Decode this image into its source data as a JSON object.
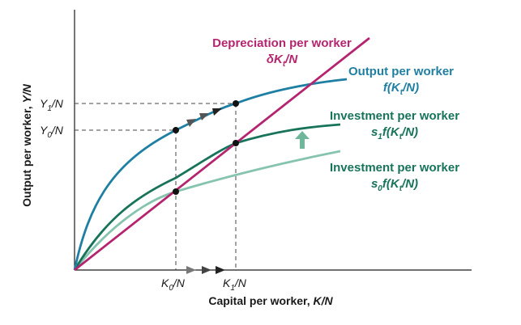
{
  "chart_data": {
    "type": "line",
    "xlabel": "Capital per worker, K/N",
    "ylabel": "Output per worker, Y/N",
    "x_ticks": [
      "K0/N",
      "K1/N"
    ],
    "y_ticks": [
      "Y0/N",
      "Y1/N"
    ],
    "series": [
      {
        "name": "Depreciation per worker",
        "formula": "δKt/N",
        "color": "#b5246f",
        "shape": "linear"
      },
      {
        "name": "Output per worker",
        "formula": "f(Kt/N)",
        "color": "#1f7fa3",
        "shape": "concave"
      },
      {
        "name": "Investment per worker",
        "formula": "s1f(Kt/N)",
        "color": "#17745a",
        "shape": "concave"
      },
      {
        "name": "Investment per worker",
        "formula": "s0f(Kt/N)",
        "color": "#86c4ae",
        "shape": "concave"
      }
    ]
  },
  "labels": {
    "xlabel_text": "Capital per worker, ",
    "xlabel_var": "K/N",
    "ylabel_text": "Output per worker, ",
    "ylabel_var": "Y/N",
    "dep_title": "Depreciation per worker",
    "out_title": "Output per worker",
    "inv1_title": "Investment per worker",
    "inv0_title": "Investment per worker",
    "k0_main": "K",
    "k0_sub": "0",
    "k0_tail": "/N",
    "k1_main": "K",
    "k1_sub": "1",
    "k1_tail": "/N",
    "y0_main": "Y",
    "y0_sub": "0",
    "y0_tail": "/N",
    "y1_main": "Y",
    "y1_sub": "1",
    "y1_tail": "/N"
  },
  "colors": {
    "depreciation": "#b5246f",
    "output": "#1f7fa3",
    "investment_s1": "#17745a",
    "investment_s0": "#86c4ae",
    "axis": "#1a1a1a",
    "arrows": "#555555",
    "shift_arrow": "#6fb69a"
  }
}
